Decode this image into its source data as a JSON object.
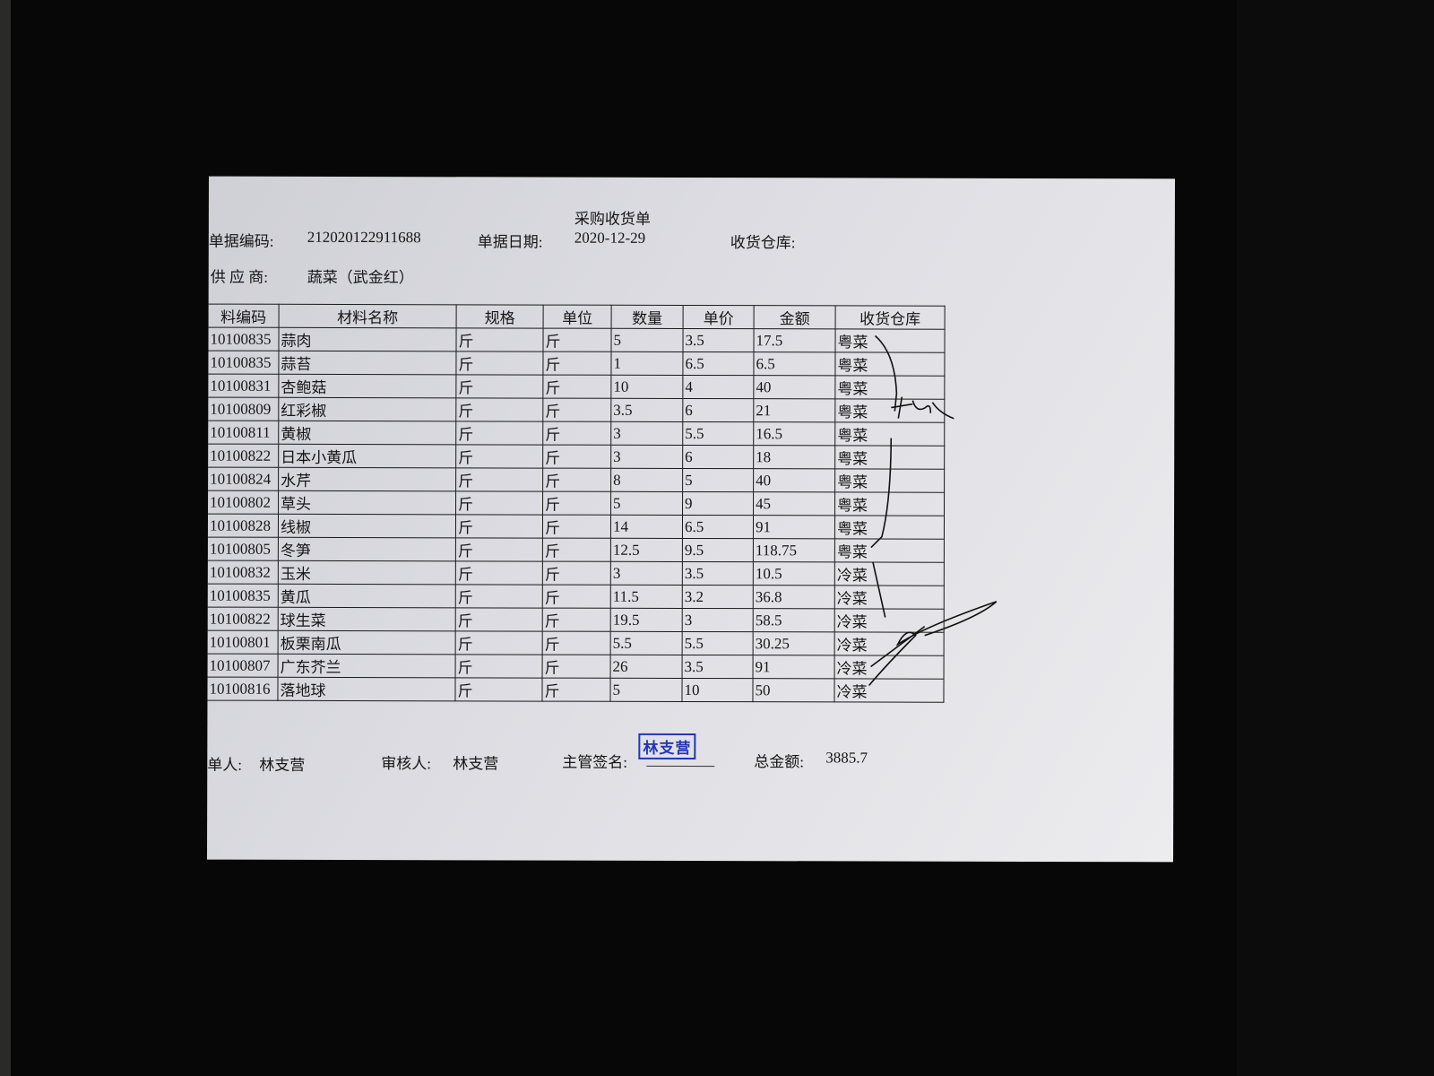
{
  "document": {
    "title": "采购收货单",
    "doc_number_label": "单据编码:",
    "doc_number": "212020122911688",
    "doc_date_label": "单据日期:",
    "doc_date": "2020-12-29",
    "warehouse_label": "收货仓库:",
    "supplier_label": "供 应 商:",
    "supplier": "蔬菜（武金红）",
    "columns": [
      "料编码",
      "材料名称",
      "规格",
      "单位",
      "数量",
      "单价",
      "金额",
      "收货仓库"
    ],
    "rows": [
      [
        "10100835",
        "蒜肉",
        "斤",
        "斤",
        "5",
        "3.5",
        "17.5",
        "粤菜"
      ],
      [
        "10100835",
        "蒜苔",
        "斤",
        "斤",
        "1",
        "6.5",
        "6.5",
        "粤菜"
      ],
      [
        "10100831",
        "杏鲍菇",
        "斤",
        "斤",
        "10",
        "4",
        "40",
        "粤菜"
      ],
      [
        "10100809",
        "红彩椒",
        "斤",
        "斤",
        "3.5",
        "6",
        "21",
        "粤菜"
      ],
      [
        "10100811",
        "黄椒",
        "斤",
        "斤",
        "3",
        "5.5",
        "16.5",
        "粤菜"
      ],
      [
        "10100822",
        "日本小黄瓜",
        "斤",
        "斤",
        "3",
        "6",
        "18",
        "粤菜"
      ],
      [
        "10100824",
        "水芹",
        "斤",
        "斤",
        "8",
        "5",
        "40",
        "粤菜"
      ],
      [
        "10100802",
        "草头",
        "斤",
        "斤",
        "5",
        "9",
        "45",
        "粤菜"
      ],
      [
        "10100828",
        "线椒",
        "斤",
        "斤",
        "14",
        "6.5",
        "91",
        "粤菜"
      ],
      [
        "10100805",
        "冬笋",
        "斤",
        "斤",
        "12.5",
        "9.5",
        "118.75",
        "粤菜"
      ],
      [
        "10100832",
        "玉米",
        "斤",
        "斤",
        "3",
        "3.5",
        "10.5",
        "冷菜"
      ],
      [
        "10100835",
        "黄瓜",
        "斤",
        "斤",
        "11.5",
        "3.2",
        "36.8",
        "冷菜"
      ],
      [
        "10100822",
        "球生菜",
        "斤",
        "斤",
        "19.5",
        "3",
        "58.5",
        "冷菜"
      ],
      [
        "10100801",
        "板栗南瓜",
        "斤",
        "斤",
        "5.5",
        "5.5",
        "30.25",
        "冷菜"
      ],
      [
        "10100807",
        "广东芥兰",
        "斤",
        "斤",
        "26",
        "3.5",
        "91",
        "冷菜"
      ],
      [
        "10100816",
        "落地球",
        "斤",
        "斤",
        "5",
        "10",
        "50",
        "冷菜"
      ]
    ],
    "footer": {
      "maker_label": "单人:",
      "maker": "林支营",
      "reviewer_label": "审核人:",
      "reviewer": "林支营",
      "supervisor_label": "主管签名:",
      "stamp": "林支营",
      "total_label": "总金额:",
      "total": "3885.7"
    }
  },
  "colors": {
    "stamp": "#2336b8",
    "background": "#070707",
    "paper": "#dcdce2"
  }
}
